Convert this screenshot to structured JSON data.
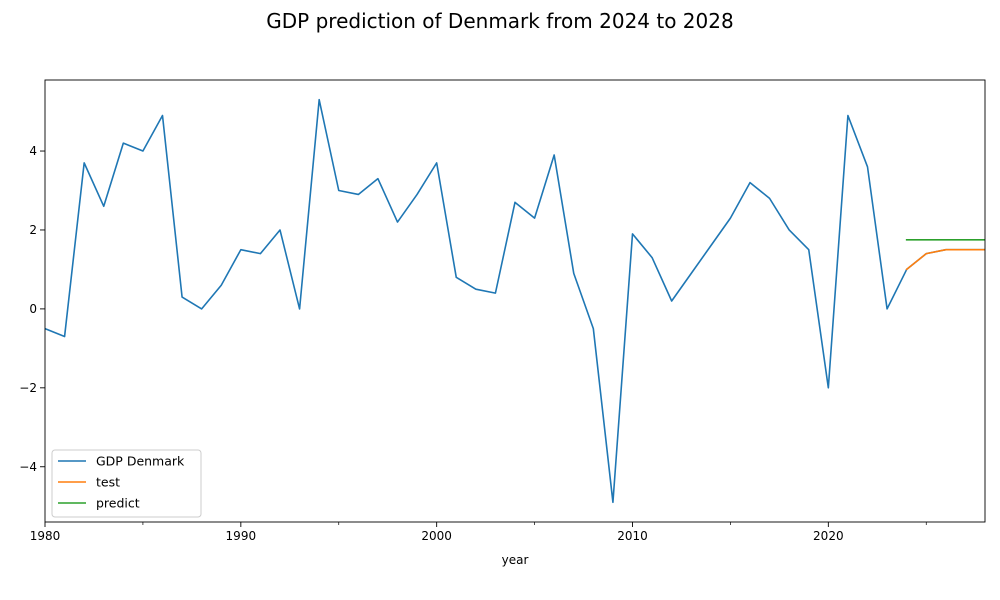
{
  "chart_data": {
    "type": "line",
    "title": "GDP prediction of Denmark from 2024 to 2028",
    "xlabel": "year",
    "ylabel": "",
    "xlim": [
      1980,
      2028
    ],
    "ylim": [
      -5.4,
      5.8
    ],
    "x_ticks": [
      1980,
      1990,
      2000,
      2010,
      2020
    ],
    "y_ticks": [
      -4,
      -2,
      0,
      2,
      4
    ],
    "legend": "lower-left",
    "grid": false,
    "series": [
      {
        "name": "GDP Denmark",
        "color": "#1f77b4",
        "x": [
          1980,
          1981,
          1982,
          1983,
          1984,
          1985,
          1986,
          1987,
          1988,
          1989,
          1990,
          1991,
          1992,
          1993,
          1994,
          1995,
          1996,
          1997,
          1998,
          1999,
          2000,
          2001,
          2002,
          2003,
          2004,
          2005,
          2006,
          2007,
          2008,
          2009,
          2010,
          2011,
          2012,
          2013,
          2014,
          2015,
          2016,
          2017,
          2018,
          2019,
          2020,
          2021,
          2022,
          2023,
          2024,
          2025,
          2026,
          2027,
          2028
        ],
        "values": [
          -0.5,
          -0.7,
          3.7,
          2.6,
          4.2,
          4.0,
          4.9,
          0.3,
          0.0,
          0.6,
          1.5,
          1.4,
          2.0,
          0.0,
          5.3,
          3.0,
          2.9,
          3.3,
          2.2,
          2.9,
          3.7,
          0.8,
          0.5,
          0.4,
          2.7,
          2.3,
          3.9,
          0.9,
          -0.5,
          -4.9,
          1.9,
          1.3,
          0.2,
          0.9,
          1.6,
          2.3,
          3.2,
          2.8,
          2.0,
          1.5,
          -2.0,
          4.9,
          3.6,
          0.0,
          1.0,
          1.4,
          1.5,
          1.5,
          1.5
        ]
      },
      {
        "name": "test",
        "color": "#ff7f0e",
        "x": [
          2024,
          2025,
          2026,
          2027,
          2028
        ],
        "values": [
          1.0,
          1.4,
          1.5,
          1.5,
          1.5
        ]
      },
      {
        "name": "predict",
        "color": "#2ca02c",
        "x": [
          2024,
          2025,
          2026,
          2027,
          2028
        ],
        "values": [
          1.75,
          1.75,
          1.75,
          1.75,
          1.75
        ]
      }
    ]
  }
}
